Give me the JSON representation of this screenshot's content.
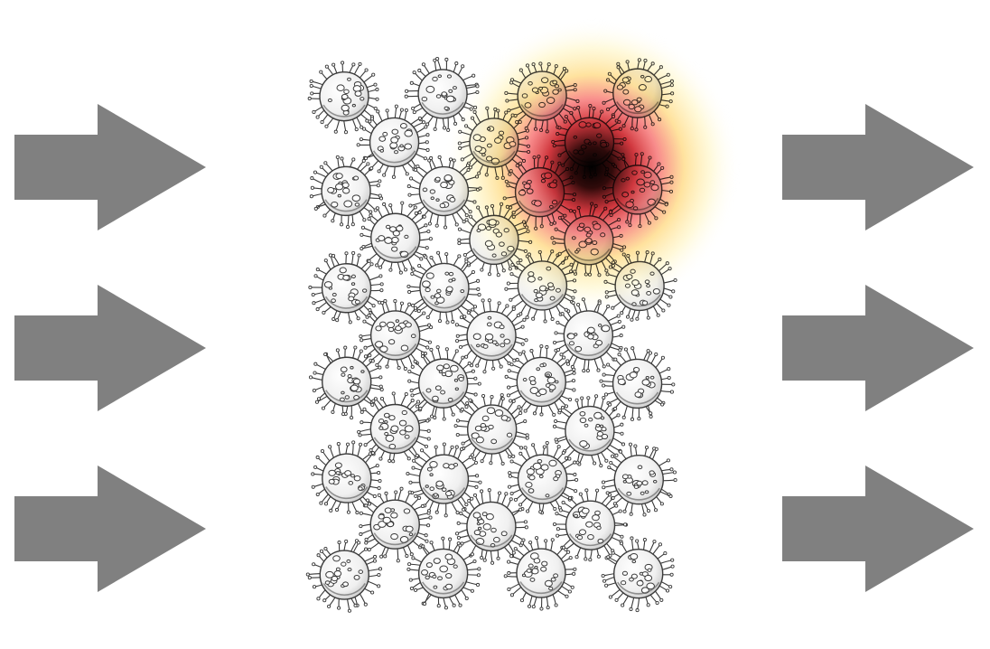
{
  "diagram": {
    "left_arrows": [
      {
        "icon": "right-arrow-icon"
      },
      {
        "icon": "right-arrow-icon"
      },
      {
        "icon": "right-arrow-icon"
      }
    ],
    "right_arrows": [
      {
        "icon": "right-arrow-icon"
      },
      {
        "icon": "right-arrow-icon"
      },
      {
        "icon": "right-arrow-icon"
      }
    ],
    "particles": {
      "icon": "virus-particle-icon",
      "row_counts": [
        4,
        3,
        4,
        3,
        4,
        3,
        4,
        3,
        4,
        3,
        4
      ]
    },
    "heatmap": {
      "icon": "heat-spot-icon",
      "colors": [
        "#000000",
        "#e51c23",
        "#f86060",
        "#ffe27a",
        "#fffbe0"
      ]
    }
  },
  "colors": {
    "arrow": "#808080",
    "background": "#ffffff",
    "particle_stroke": "#3a3a3a",
    "particle_fill": "#f4f4f4"
  }
}
